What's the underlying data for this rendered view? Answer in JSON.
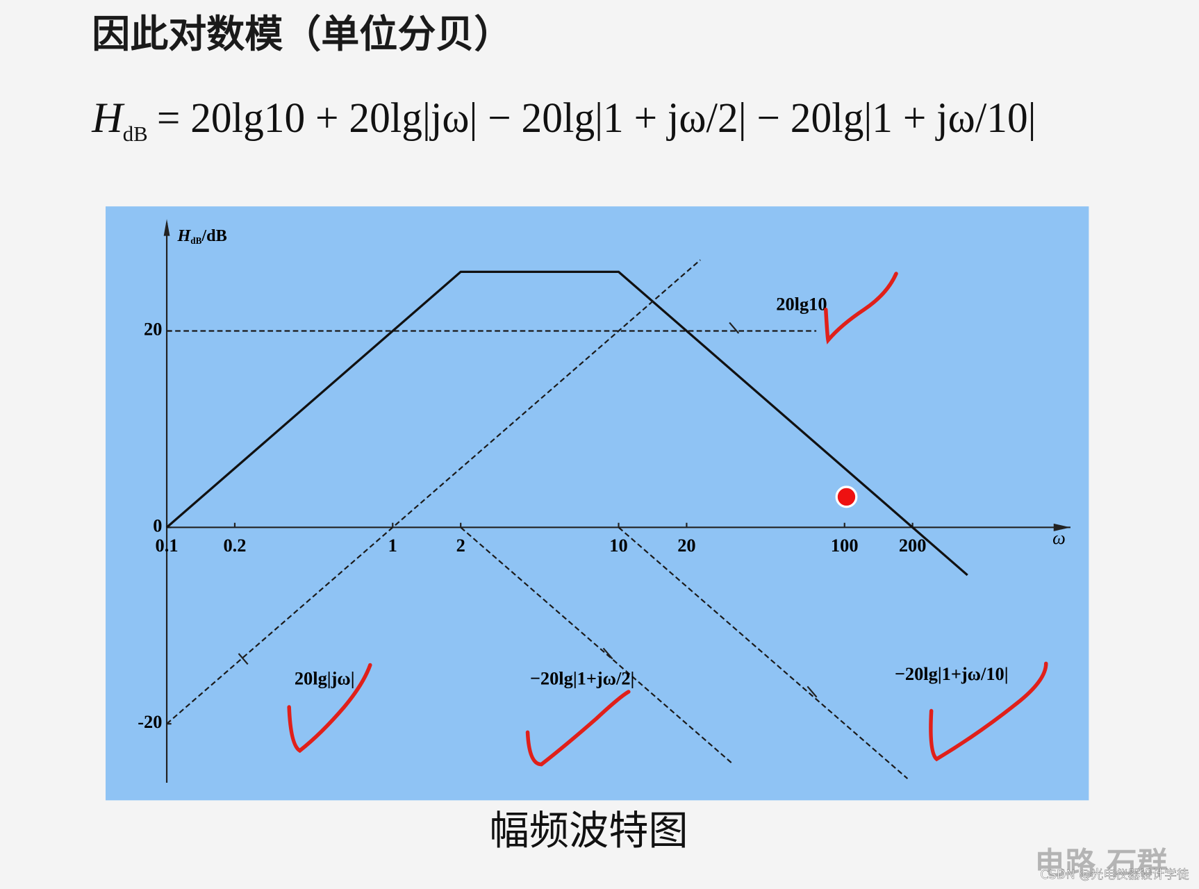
{
  "heading": "因此对数模（单位分贝）",
  "formula": {
    "lhs": "H",
    "lhs_sub": "dB",
    "rhs": "= 20lg10 + 20lg|jω| − 20lg|1 + jω/2| − 20lg|1 + jω/10|"
  },
  "chart_data": {
    "type": "line",
    "x_label": "ω",
    "y_label": {
      "symbol": "H",
      "subscript": "dB",
      "unit": "/dB"
    },
    "log_x": true,
    "xlim": [
      0.1,
      1000
    ],
    "xticks": [
      0.1,
      0.2,
      1,
      2,
      10,
      20,
      100,
      200
    ],
    "ylim": [
      -26,
      31
    ],
    "yticks": [
      -20,
      0,
      20
    ],
    "series": [
      {
        "x": [
          0.1,
          2,
          10,
          200,
          350
        ],
        "values": [
          0,
          26.02,
          26.02,
          0,
          -4.86
        ],
        "color": "#111111",
        "dashed": false
      },
      {
        "name": "20lg10",
        "x": [
          0.1,
          75
        ],
        "values": [
          20,
          20
        ],
        "color": "#1a1a1a",
        "dashed": true
      },
      {
        "name": "20lg|jω|",
        "x": [
          0.1,
          23
        ],
        "values": [
          -20,
          27.23
        ],
        "color": "#1a1a1a",
        "dashed": true
      },
      {
        "name": "−20lg|1+jω/2|",
        "x": [
          2,
          32
        ],
        "values": [
          0,
          -24.08
        ],
        "color": "#1a1a1a",
        "dashed": true
      },
      {
        "name": "−20lg|1+jω/10|",
        "x": [
          10,
          190
        ],
        "values": [
          0,
          -25.58
        ],
        "color": "#1a1a1a",
        "dashed": true
      }
    ]
  },
  "caption": "幅频波特图",
  "watermark": "电路 石群",
  "credit": "CSDN @光电仪器设计学徒"
}
